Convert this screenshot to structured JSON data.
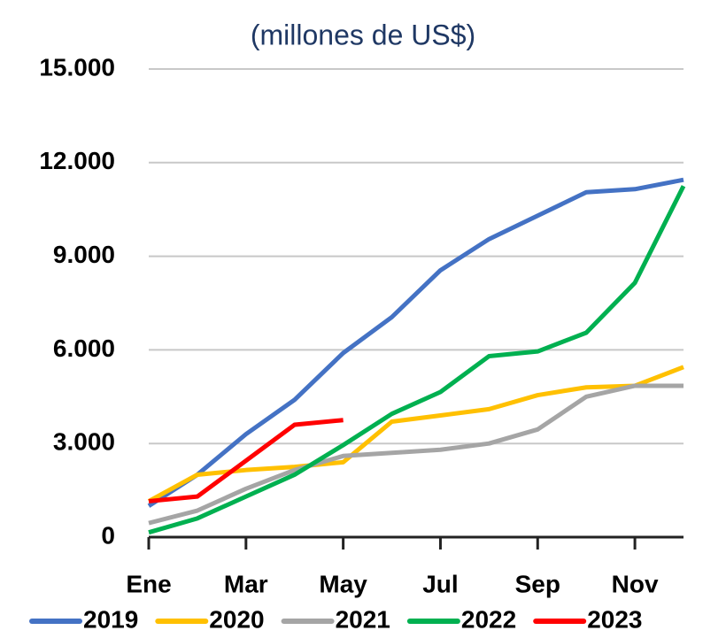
{
  "chart_data": {
    "type": "line",
    "title": "(millones de US$)",
    "categories": [
      "Ene",
      null,
      "Mar",
      null,
      "May",
      null,
      "Jul",
      null,
      "Sep",
      null,
      "Nov",
      null
    ],
    "series": [
      {
        "name": "2019",
        "color": "#4472c4",
        "values": [
          1000,
          2000,
          3300,
          4400,
          5900,
          7050,
          8550,
          9550,
          10300,
          11050,
          11150,
          11450
        ]
      },
      {
        "name": "2020",
        "color": "#ffc000",
        "values": [
          1150,
          2000,
          2150,
          2250,
          2400,
          3700,
          3900,
          4100,
          4550,
          4800,
          4850,
          5450
        ]
      },
      {
        "name": "2021",
        "color": "#a5a5a5",
        "values": [
          450,
          850,
          1550,
          2150,
          2600,
          2700,
          2800,
          3000,
          3450,
          4500,
          4850,
          4850
        ]
      },
      {
        "name": "2022",
        "color": "#00b050",
        "values": [
          150,
          600,
          1300,
          2000,
          2950,
          3950,
          4650,
          5800,
          5950,
          6550,
          8150,
          11250
        ]
      },
      {
        "name": "2023",
        "color": "#ff0000",
        "values": [
          1150,
          1300,
          2450,
          3600,
          3750,
          null,
          null,
          null,
          null,
          null,
          null,
          null
        ]
      }
    ],
    "ylim": [
      0,
      15000
    ],
    "yticks": [
      0,
      {
        "value": 3000,
        "label": "3.000"
      },
      {
        "value": 6000,
        "label": "6.000"
      },
      {
        "value": 9000,
        "label": "9.000"
      },
      {
        "value": 12000,
        "label": "12.000"
      },
      {
        "value": 15000,
        "label": "15.000"
      }
    ],
    "grid": true,
    "legend": "bottom"
  }
}
